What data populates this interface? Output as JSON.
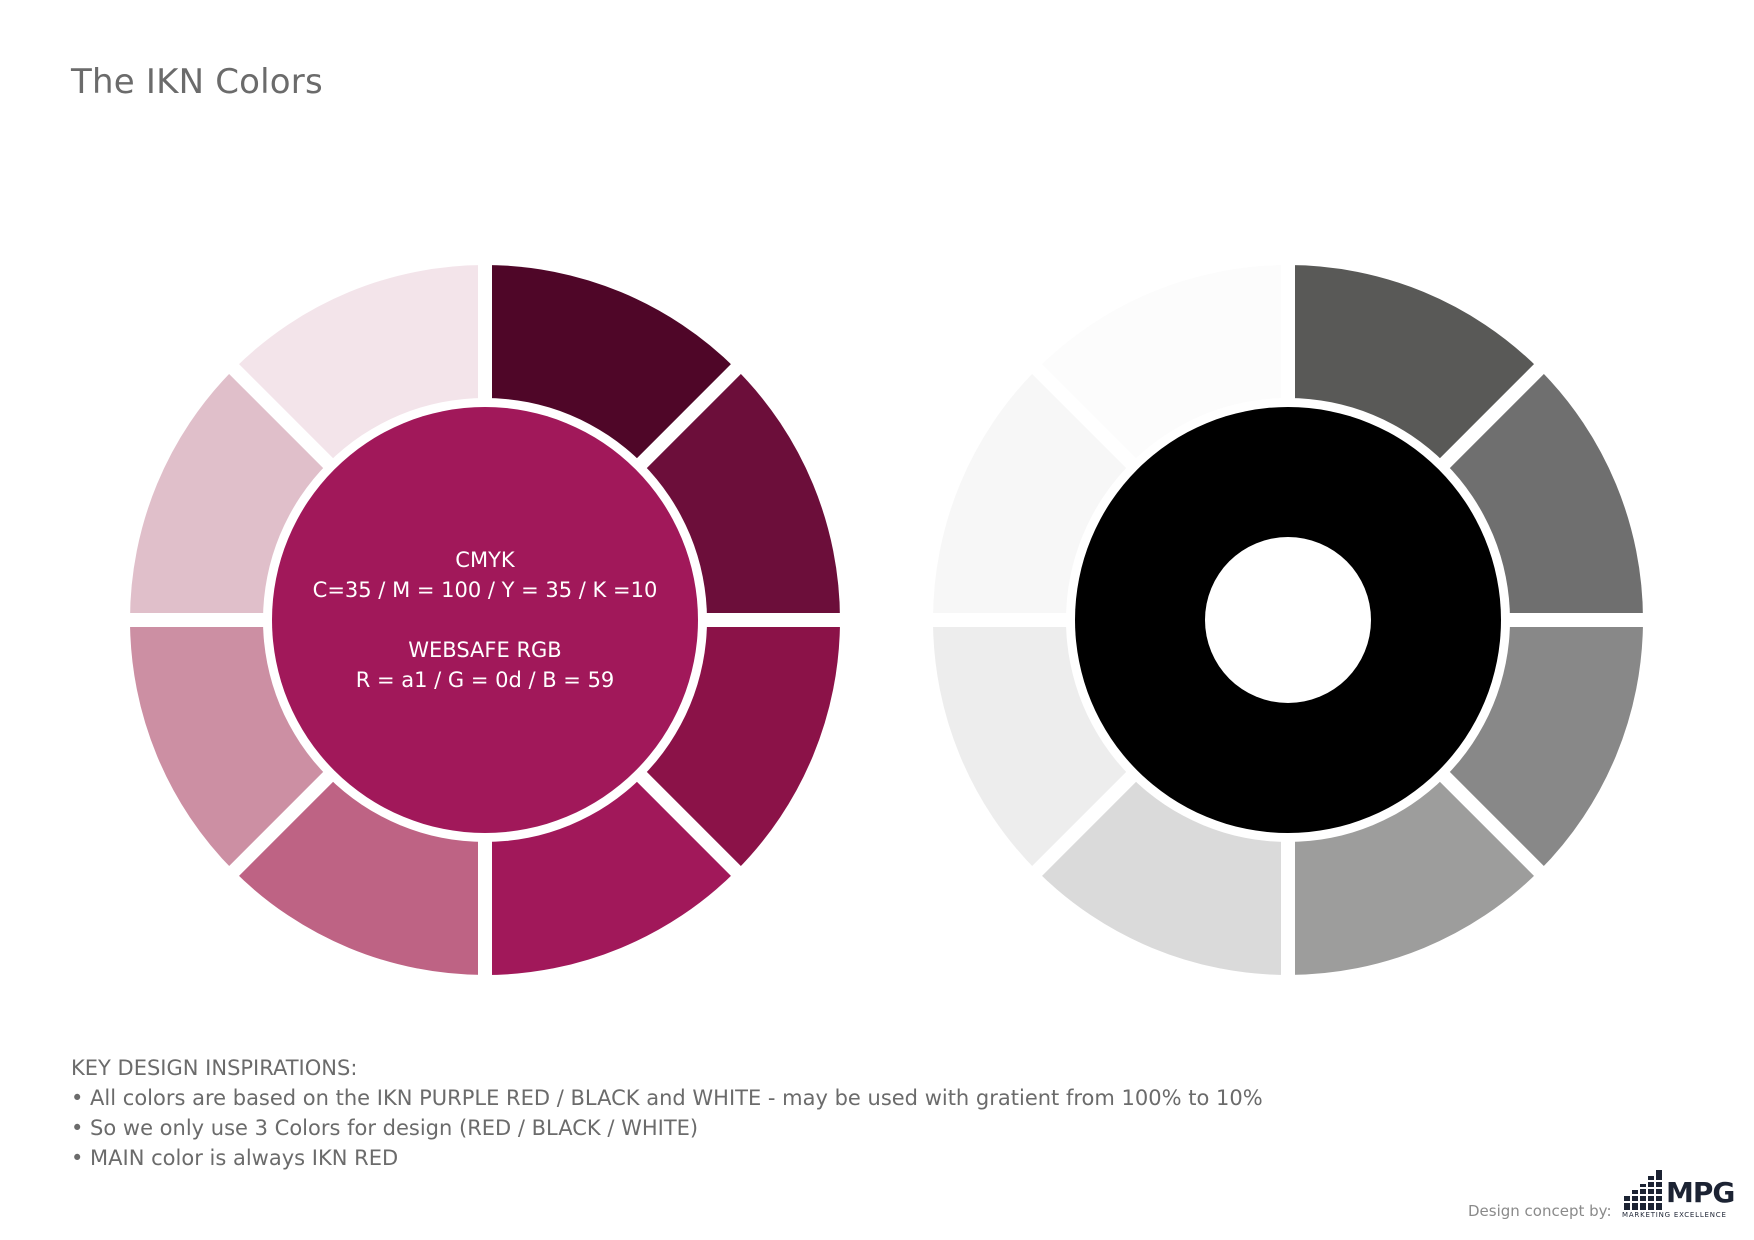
{
  "page": {
    "title": "The IKN Colors"
  },
  "wheels": {
    "colour_wheel": {
      "center_color": "#a1185a",
      "segment_colors": [
        "#4f0628",
        "#6c0e3a",
        "#8b1248",
        "#a1185a",
        "#be6384",
        "#cc8fa3",
        "#e0bfca",
        "#f3e4ea"
      ],
      "center_text": {
        "cmyk_label": "CMYK",
        "cmyk_values": "C=35 / M = 100 / Y = 35 / K =10",
        "rgb_label": "WEBSAFE RGB",
        "rgb_values": "R = a1 / G =  0d / B = 59"
      }
    },
    "greyscale_wheel": {
      "ring_color": "#000000",
      "hole_color": "#ffffff",
      "segment_colors": [
        "#595957",
        "#6f6f6f",
        "#888888",
        "#9d9d9c",
        "#dadada",
        "#ededed",
        "#f7f7f7",
        "#fcfcfc"
      ]
    }
  },
  "notes": {
    "heading": "KEY DESIGN INSPIRATIONS:",
    "items": [
      "• All colors are based on the IKN PURPLE RED / BLACK and WHITE - may be used with gratient from 100% to 10%",
      "• So we only use 3 Colors for design (RED / BLACK / WHITE)",
      "• MAIN color is always IKN RED"
    ]
  },
  "footer": {
    "credit_label": "Design concept by:",
    "logo_text": "MPG",
    "logo_subtitle": "MARKETING EXCELLENCE"
  }
}
